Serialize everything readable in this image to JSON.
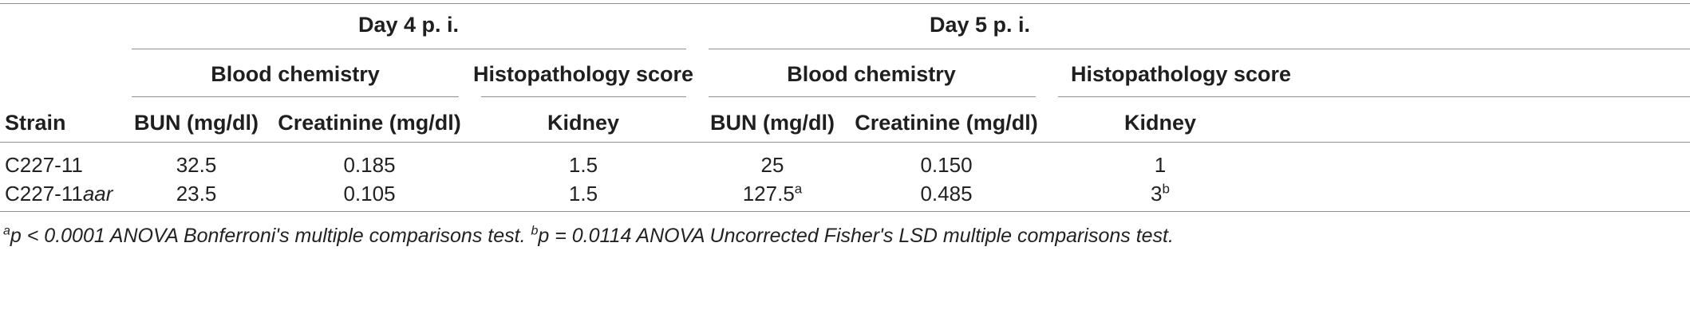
{
  "table": {
    "group_headers": [
      "Day 4 p. i.",
      "Day 5 p. i."
    ],
    "sub_headers": [
      "Blood chemistry",
      "Histopathology score",
      "Blood chemistry",
      "Histopathology score"
    ],
    "col_headers": [
      "Strain",
      "BUN (mg/dl)",
      "Creatinine (mg/dl)",
      "Kidney",
      "BUN (mg/dl)",
      "Creatinine (mg/dl)",
      "Kidney"
    ],
    "rows": [
      {
        "strain": "C227-11",
        "strain_suffix": "",
        "d4_bun": "32.5",
        "d4_creatinine": "0.185",
        "d4_kidney": "1.5",
        "d5_bun": "25",
        "d5_bun_sup": "",
        "d5_creatinine": "0.150",
        "d5_kidney": "1",
        "d5_kidney_sup": ""
      },
      {
        "strain": "C227-11",
        "strain_suffix": "aar",
        "d4_bun": "23.5",
        "d4_creatinine": "0.105",
        "d4_kidney": "1.5",
        "d5_bun": "127.5",
        "d5_bun_sup": "a",
        "d5_creatinine": "0.485",
        "d5_kidney": "3",
        "d5_kidney_sup": "b"
      }
    ]
  },
  "footnote": {
    "a_marker": "a",
    "a_text": "p < 0.0001 ANOVA Bonferroni's multiple comparisons test. ",
    "b_marker": "b",
    "b_text": "p = 0.0114 ANOVA Uncorrected Fisher's LSD multiple comparisons test."
  }
}
